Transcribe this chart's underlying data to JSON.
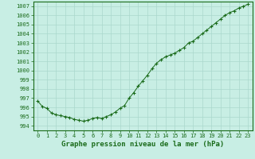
{
  "x": [
    0,
    0.5,
    1,
    1.5,
    2,
    2.5,
    3,
    3.5,
    4,
    4.5,
    5,
    5.5,
    6,
    6.5,
    7,
    7.5,
    8,
    8.5,
    9,
    9.5,
    10,
    10.5,
    11,
    11.5,
    12,
    12.5,
    13,
    13.5,
    14,
    14.5,
    15,
    15.5,
    16,
    16.5,
    17,
    17.5,
    18,
    18.5,
    19,
    19.5,
    20,
    20.5,
    21,
    21.5,
    22,
    22.5,
    23
  ],
  "y": [
    996.7,
    996.1,
    995.9,
    995.4,
    995.2,
    995.1,
    995.0,
    994.9,
    994.7,
    994.6,
    994.5,
    994.6,
    994.8,
    994.9,
    994.8,
    995.0,
    995.2,
    995.5,
    995.9,
    996.2,
    997.0,
    997.6,
    998.3,
    998.9,
    999.5,
    1000.2,
    1000.8,
    1001.2,
    1001.5,
    1001.7,
    1001.9,
    1002.2,
    1002.5,
    1003.0,
    1003.2,
    1003.6,
    1004.0,
    1004.4,
    1004.8,
    1005.2,
    1005.6,
    1006.0,
    1006.3,
    1006.5,
    1006.8,
    1007.0,
    1007.2
  ],
  "line_color": "#1a6b1a",
  "marker_color": "#1a6b1a",
  "bg_color": "#c8eee4",
  "plot_bg_color": "#c8eee4",
  "grid_color": "#aad8cc",
  "border_color": "#1a6b1a",
  "xlabel": "Graphe pression niveau de la mer (hPa)",
  "ylim": [
    993.5,
    1007.5
  ],
  "xlim": [
    -0.5,
    23.5
  ],
  "yticks": [
    994,
    995,
    996,
    997,
    998,
    999,
    1000,
    1001,
    1002,
    1003,
    1004,
    1005,
    1006,
    1007
  ],
  "xticks": [
    0,
    1,
    2,
    3,
    4,
    5,
    6,
    7,
    8,
    9,
    10,
    11,
    12,
    13,
    14,
    15,
    16,
    17,
    18,
    19,
    20,
    21,
    22,
    23
  ],
  "xtick_labels": [
    "0",
    "1",
    "2",
    "3",
    "4",
    "5",
    "6",
    "7",
    "8",
    "9",
    "10",
    "11",
    "12",
    "13",
    "14",
    "15",
    "16",
    "17",
    "18",
    "19",
    "20",
    "21",
    "22",
    "23"
  ],
  "tick_fontsize": 5,
  "xlabel_fontsize": 6.5
}
